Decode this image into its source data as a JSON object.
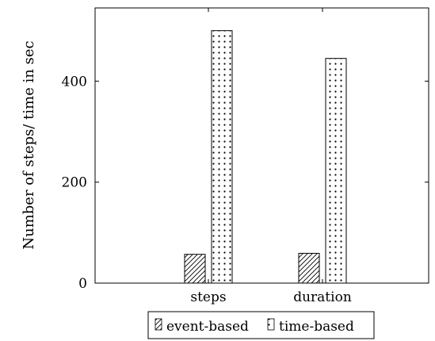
{
  "chart_data": {
    "type": "bar",
    "title": "",
    "xlabel": "",
    "ylabel": "Number of steps/ time in sec",
    "categories": [
      "steps",
      "duration"
    ],
    "series": [
      {
        "name": "event-based",
        "values": [
          57,
          59
        ],
        "pattern": "diagonal-hatch"
      },
      {
        "name": "time-based",
        "values": [
          500,
          445
        ],
        "pattern": "dots"
      }
    ],
    "ylim": [
      0,
      545
    ],
    "yticks": [
      0,
      200,
      400
    ],
    "grid": false,
    "legend": "bottom"
  }
}
